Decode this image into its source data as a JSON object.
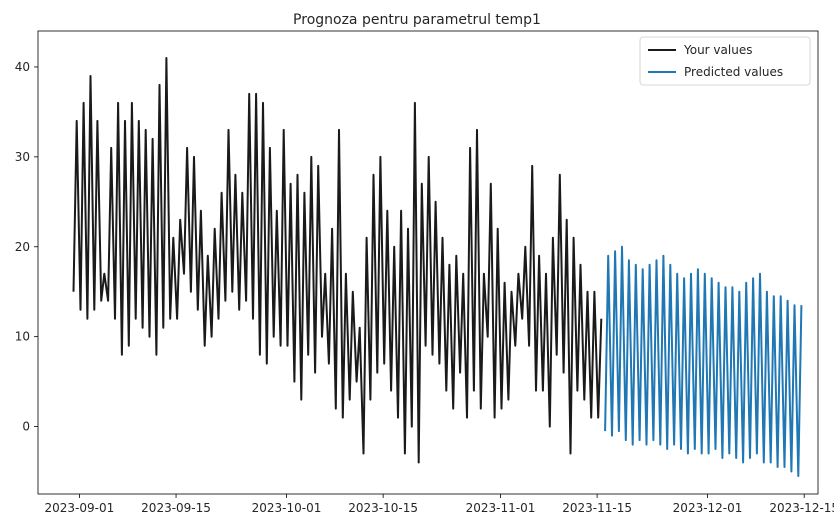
{
  "chart_data": {
    "type": "line",
    "title": "Prognoza pentru parametrul temp1",
    "xlabel": "",
    "ylabel": "",
    "x_tick_labels": [
      "2023-09-01",
      "2023-09-15",
      "2023-10-01",
      "2023-10-15",
      "2023-11-01",
      "2023-11-15",
      "2023-12-01",
      "2023-12-15"
    ],
    "y_tick_labels": [
      "0",
      "10",
      "20",
      "30",
      "40"
    ],
    "xlim": [
      "2023-08-26",
      "2023-12-17"
    ],
    "ylim": [
      -7.5,
      44
    ],
    "legend_position": "top-right",
    "grid": false,
    "series": [
      {
        "name": "Your values",
        "color": "#1a1a1a",
        "x": [
          "2023-08-31",
          "2023-09-01",
          "2023-09-02",
          "2023-09-03",
          "2023-09-04",
          "2023-09-05",
          "2023-09-06",
          "2023-09-07",
          "2023-09-08",
          "2023-09-09",
          "2023-09-10",
          "2023-09-11",
          "2023-09-12",
          "2023-09-13",
          "2023-09-14",
          "2023-09-15",
          "2023-09-16",
          "2023-09-17",
          "2023-09-18",
          "2023-09-19",
          "2023-09-20",
          "2023-09-21",
          "2023-09-22",
          "2023-09-23",
          "2023-09-24",
          "2023-09-25",
          "2023-09-26",
          "2023-09-27",
          "2023-09-28",
          "2023-09-29",
          "2023-09-30",
          "2023-10-01",
          "2023-10-02",
          "2023-10-03",
          "2023-10-04",
          "2023-10-05",
          "2023-10-06",
          "2023-10-07",
          "2023-10-08",
          "2023-10-09",
          "2023-10-10",
          "2023-10-11",
          "2023-10-12",
          "2023-10-13",
          "2023-10-14",
          "2023-10-15",
          "2023-10-16",
          "2023-10-17",
          "2023-10-18",
          "2023-10-19",
          "2023-10-20",
          "2023-10-21",
          "2023-10-22",
          "2023-10-23",
          "2023-10-24",
          "2023-10-25",
          "2023-10-26",
          "2023-10-27",
          "2023-10-28",
          "2023-10-29",
          "2023-10-30",
          "2023-10-31",
          "2023-11-01",
          "2023-11-02",
          "2023-11-03",
          "2023-11-04",
          "2023-11-05",
          "2023-11-06",
          "2023-11-07",
          "2023-11-08",
          "2023-11-09",
          "2023-11-10",
          "2023-11-11",
          "2023-11-12",
          "2023-11-13",
          "2023-11-14",
          "2023-11-15"
        ],
        "low": [
          15,
          13,
          12,
          13,
          14,
          14,
          12,
          8,
          9,
          12,
          11,
          10,
          8,
          11,
          12,
          12,
          17,
          15,
          13,
          9,
          10,
          12,
          14,
          15,
          13,
          14,
          12,
          8,
          7,
          10,
          9,
          9,
          5,
          3,
          8,
          6,
          10,
          7,
          2,
          1,
          3,
          5,
          -3,
          3,
          6,
          7,
          4,
          1,
          -3,
          0,
          -4,
          9,
          8,
          7,
          4,
          2,
          6,
          1,
          4,
          2,
          10,
          1,
          2,
          3,
          9,
          12,
          9,
          4,
          4,
          0,
          8,
          6,
          -3,
          4,
          3,
          1,
          1
        ],
        "high": [
          34,
          36,
          39,
          34,
          17,
          31,
          36,
          34,
          36,
          34,
          33,
          32,
          38,
          41,
          21,
          23,
          31,
          30,
          24,
          19,
          22,
          26,
          33,
          28,
          26,
          37,
          37,
          36,
          31,
          24,
          33,
          27,
          28,
          26,
          30,
          29,
          17,
          22,
          33,
          17,
          15,
          11,
          21,
          28,
          30,
          24,
          20,
          24,
          22,
          36,
          27,
          30,
          25,
          21,
          18,
          19,
          17,
          31,
          33,
          17,
          27,
          22,
          16,
          15,
          17,
          20,
          29,
          19,
          17,
          21,
          28,
          23,
          21,
          18,
          15,
          15,
          12
        ]
      },
      {
        "name": "Predicted values",
        "color": "#1f77b4",
        "x": [
          "2023-11-16",
          "2023-11-17",
          "2023-11-18",
          "2023-11-19",
          "2023-11-20",
          "2023-11-21",
          "2023-11-22",
          "2023-11-23",
          "2023-11-24",
          "2023-11-25",
          "2023-11-26",
          "2023-11-27",
          "2023-11-28",
          "2023-11-29",
          "2023-11-30",
          "2023-12-01",
          "2023-12-02",
          "2023-12-03",
          "2023-12-04",
          "2023-12-05",
          "2023-12-06",
          "2023-12-07",
          "2023-12-08",
          "2023-12-09",
          "2023-12-10",
          "2023-12-11",
          "2023-12-12",
          "2023-12-13",
          "2023-12-14"
        ],
        "low": [
          -0.5,
          -1,
          -0.5,
          -1.5,
          -2,
          -1.5,
          -2,
          -1.5,
          -2,
          -2.5,
          -2,
          -2.5,
          -3,
          -2.5,
          -3,
          -3,
          -2.5,
          -3.5,
          -3,
          -3.5,
          -4,
          -3.5,
          -3,
          -4,
          -4,
          -4.5,
          -4.5,
          -5,
          -5.5
        ],
        "high": [
          19,
          19.5,
          20,
          18.5,
          18,
          17.5,
          18,
          18.5,
          19,
          18,
          17,
          16.5,
          17,
          17.5,
          17,
          16.5,
          16,
          15.5,
          15.5,
          15,
          16,
          16.5,
          17,
          15,
          14.5,
          14.5,
          14,
          13.5,
          13.5
        ]
      }
    ]
  }
}
